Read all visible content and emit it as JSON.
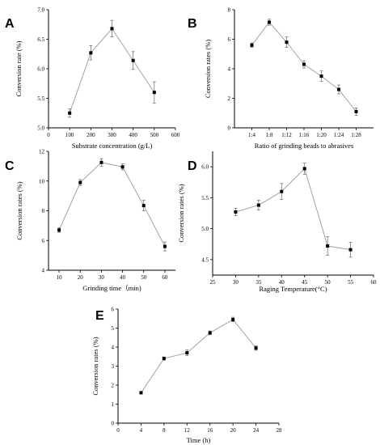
{
  "chart_data": [
    {
      "panel": "A",
      "type": "line",
      "xlabel": "Substrate concentration (g/L)",
      "ylabel": "Conversion rate (%)",
      "xlim": [
        0,
        600
      ],
      "ylim": [
        5.0,
        7.0
      ],
      "xticks": [
        0,
        100,
        200,
        300,
        400,
        500,
        600
      ],
      "xtick_labels": [
        "0",
        "100",
        "200",
        "300",
        "400",
        "500",
        "600"
      ],
      "yticks": [
        5.0,
        5.5,
        6.0,
        6.5,
        7.0
      ],
      "ytick_labels": [
        "5.0",
        "5.5",
        "6.0",
        "6.5",
        "7.0"
      ],
      "x": [
        100,
        200,
        300,
        400,
        500
      ],
      "y": [
        5.25,
        6.27,
        6.68,
        6.14,
        5.6
      ],
      "err": [
        0.07,
        0.12,
        0.14,
        0.15,
        0.18
      ]
    },
    {
      "panel": "B",
      "type": "line",
      "xlabel": "Ratio of grinding beads to abrasives",
      "ylabel": "Conversion rates (%)",
      "xlim": [
        0,
        8
      ],
      "ylim": [
        0,
        8
      ],
      "xticks": [
        1,
        2,
        3,
        4,
        5,
        6,
        7
      ],
      "xtick_labels": [
        "1:4",
        "1:8",
        "1:12",
        "1:16",
        "1:20",
        "1:24",
        "1:28"
      ],
      "yticks": [
        0,
        2,
        4,
        6,
        8
      ],
      "ytick_labels": [
        "0",
        "2",
        "4",
        "6",
        "8"
      ],
      "x": [
        1,
        2,
        3,
        4,
        5,
        6,
        7
      ],
      "y": [
        5.6,
        7.15,
        5.8,
        4.3,
        3.5,
        2.6,
        1.1
      ],
      "err": [
        0.15,
        0.2,
        0.35,
        0.25,
        0.35,
        0.3,
        0.25
      ]
    },
    {
      "panel": "C",
      "type": "line",
      "xlabel": "Grinding time（min)",
      "ylabel": "Conversion rates (%)",
      "xlim": [
        5,
        65
      ],
      "ylim": [
        4,
        12
      ],
      "xticks": [
        10,
        20,
        30,
        40,
        50,
        60
      ],
      "xtick_labels": [
        "10",
        "20",
        "30",
        "40",
        "50",
        "60"
      ],
      "yticks": [
        4,
        6,
        8,
        10,
        12
      ],
      "ytick_labels": [
        "4",
        "6",
        "8",
        "10",
        "12"
      ],
      "x": [
        10,
        20,
        30,
        40,
        50,
        60
      ],
      "y": [
        6.7,
        9.9,
        11.25,
        10.95,
        8.35,
        5.6
      ],
      "err": [
        0.15,
        0.2,
        0.25,
        0.2,
        0.35,
        0.3
      ]
    },
    {
      "panel": "D",
      "type": "line",
      "xlabel": "Raging   Temperature(°C)",
      "ylabel": "Conversion rates (%)",
      "xlim": [
        25,
        60
      ],
      "ylim": [
        4.25,
        6.25
      ],
      "xticks": [
        25,
        30,
        35,
        40,
        45,
        50,
        55,
        60
      ],
      "xtick_labels": [
        "25",
        "30",
        "35",
        "40",
        "45",
        "50",
        "55",
        "60"
      ],
      "yticks": [
        4.5,
        5.0,
        5.5,
        6.0
      ],
      "ytick_labels": [
        "4.5",
        "5.0",
        "5.5",
        "6.0"
      ],
      "x": [
        30,
        35,
        40,
        45,
        50,
        55
      ],
      "y": [
        5.27,
        5.38,
        5.6,
        5.97,
        4.72,
        4.66
      ],
      "err": [
        0.06,
        0.08,
        0.13,
        0.09,
        0.15,
        0.12
      ]
    },
    {
      "panel": "E",
      "type": "line",
      "xlabel": "Time (h)",
      "ylabel": "Conversion rates (%)",
      "xlim": [
        0,
        28
      ],
      "ylim": [
        0,
        6
      ],
      "xticks": [
        0,
        4,
        8,
        12,
        16,
        20,
        24,
        28
      ],
      "xtick_labels": [
        "0",
        "4",
        "8",
        "12",
        "16",
        "20",
        "24",
        "28"
      ],
      "yticks": [
        0,
        1,
        2,
        3,
        4,
        5,
        6
      ],
      "ytick_labels": [
        "0",
        "1",
        "2",
        "3",
        "4",
        "5",
        "6"
      ],
      "x": [
        4,
        8,
        12,
        16,
        20,
        24
      ],
      "y": [
        1.6,
        3.4,
        3.7,
        4.75,
        5.45,
        3.95
      ],
      "err": [
        0.04,
        0.08,
        0.15,
        0.1,
        0.12,
        0.12
      ]
    }
  ]
}
